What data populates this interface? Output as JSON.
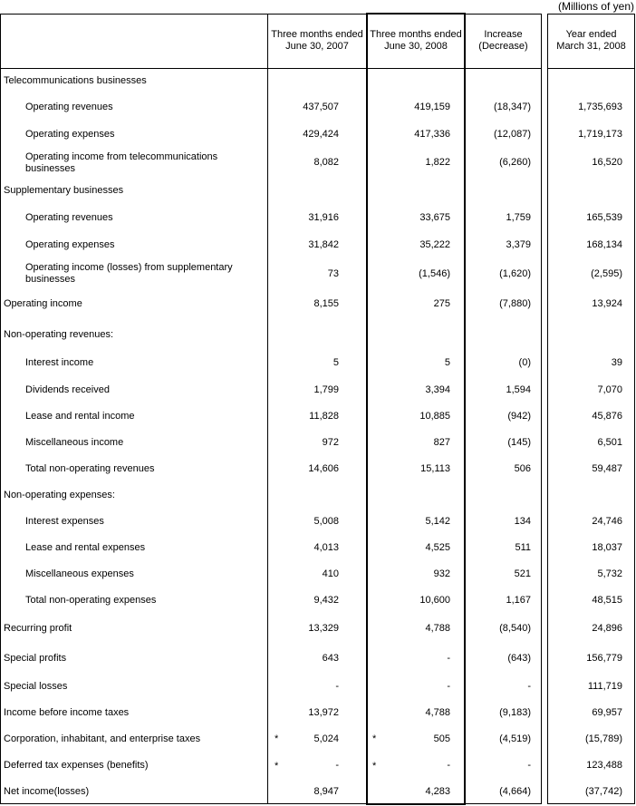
{
  "unit_note": "(Millions of yen)",
  "columns": [
    {
      "line1": "Three months ended",
      "line2": "June 30, 2007"
    },
    {
      "line1": "Three months ended",
      "line2": "June 30, 2008"
    },
    {
      "line1": "Increase",
      "line2": "(Decrease)"
    },
    {
      "line1": "Year ended",
      "line2": "March 31, 2008"
    }
  ],
  "rows": [
    {
      "label": "Telecommunications businesses",
      "indent": false,
      "values": [
        "",
        "",
        "",
        ""
      ]
    },
    {
      "label": "Operating revenues",
      "indent": true,
      "values": [
        "437,507",
        "419,159",
        "(18,347)",
        "1,735,693"
      ]
    },
    {
      "label": "Operating expenses",
      "indent": true,
      "values": [
        "429,424",
        "417,336",
        "(12,087)",
        "1,719,173"
      ]
    },
    {
      "label": "Operating income from telecommunications businesses",
      "indent": true,
      "values": [
        "8,082",
        "1,822",
        "(6,260)",
        "16,520"
      ]
    },
    {
      "label": "Supplementary businesses",
      "indent": false,
      "values": [
        "",
        "",
        "",
        ""
      ]
    },
    {
      "label": "Operating revenues",
      "indent": true,
      "values": [
        "31,916",
        "33,675",
        "1,759",
        "165,539"
      ]
    },
    {
      "label": "Operating expenses",
      "indent": true,
      "values": [
        "31,842",
        "35,222",
        "3,379",
        "168,134"
      ]
    },
    {
      "label": "Operating income (losses) from supplementary businesses",
      "indent": true,
      "values": [
        "73",
        "(1,546)",
        "(1,620)",
        "(2,595)"
      ]
    },
    {
      "label": "Operating income",
      "indent": false,
      "values": [
        "8,155",
        "275",
        "(7,880)",
        "13,924"
      ]
    },
    {
      "label": "Non-operating revenues:",
      "indent": false,
      "values": [
        "",
        "",
        "",
        ""
      ]
    },
    {
      "label": "Interest income",
      "indent": true,
      "values": [
        "5",
        "5",
        "(0)",
        "39"
      ]
    },
    {
      "label": "Dividends received",
      "indent": true,
      "values": [
        "1,799",
        "3,394",
        "1,594",
        "7,070"
      ]
    },
    {
      "label": "Lease and rental income",
      "indent": true,
      "values": [
        "11,828",
        "10,885",
        "(942)",
        "45,876"
      ]
    },
    {
      "label": "Miscellaneous income",
      "indent": true,
      "values": [
        "972",
        "827",
        "(145)",
        "6,501"
      ]
    },
    {
      "label": "Total non-operating revenues",
      "indent": true,
      "values": [
        "14,606",
        "15,113",
        "506",
        "59,487"
      ]
    },
    {
      "label": "Non-operating expenses:",
      "indent": false,
      "values": [
        "",
        "",
        "",
        ""
      ]
    },
    {
      "label": "Interest expenses",
      "indent": true,
      "values": [
        "5,008",
        "5,142",
        "134",
        "24,746"
      ]
    },
    {
      "label": "Lease and rental expenses",
      "indent": true,
      "values": [
        "4,013",
        "4,525",
        "511",
        "18,037"
      ]
    },
    {
      "label": "Miscellaneous expenses",
      "indent": true,
      "values": [
        "410",
        "932",
        "521",
        "5,732"
      ]
    },
    {
      "label": "Total non-operating expenses",
      "indent": true,
      "values": [
        "9,432",
        "10,600",
        "1,167",
        "48,515"
      ]
    },
    {
      "label": "Recurring profit",
      "indent": false,
      "values": [
        "13,329",
        "4,788",
        "(8,540)",
        "24,896"
      ]
    },
    {
      "label": "Special profits",
      "indent": false,
      "values": [
        "643",
        "-",
        "(643)",
        "156,779"
      ]
    },
    {
      "label": "Special losses",
      "indent": false,
      "values": [
        "-",
        "-",
        "-",
        "111,719"
      ]
    },
    {
      "label": "Income before income taxes",
      "indent": false,
      "values": [
        "13,972",
        "4,788",
        "(9,183)",
        "69,957"
      ]
    },
    {
      "label": "Corporation, inhabitant, and enterprise taxes",
      "indent": false,
      "values": [
        "5,024",
        "505",
        "(4,519)",
        "(15,789)"
      ],
      "asterisk": "*"
    },
    {
      "label": "Deferred tax expenses (benefits)",
      "indent": false,
      "values": [
        "-",
        "-",
        "-",
        "123,488"
      ],
      "asterisk": "*"
    },
    {
      "label": "Net income(losses)",
      "indent": false,
      "values": [
        "8,947",
        "4,283",
        "(4,664)",
        "(37,742)"
      ]
    }
  ]
}
